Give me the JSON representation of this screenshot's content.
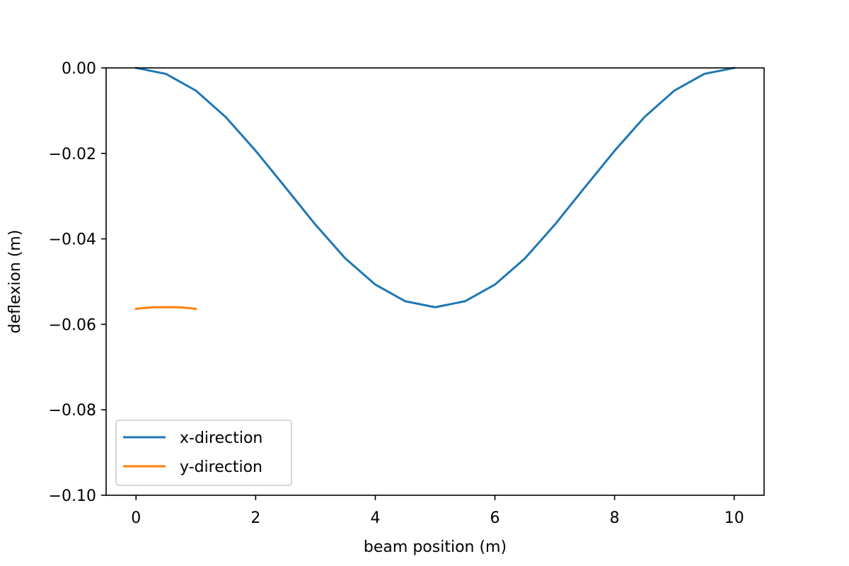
{
  "chart_data": {
    "type": "line",
    "title": "",
    "xlabel": "beam position (m)",
    "ylabel": "deflexion (m)",
    "xlim": [
      -0.5,
      10.5
    ],
    "ylim": [
      -0.1,
      0.0
    ],
    "xticks": [
      0,
      2,
      4,
      6,
      8,
      10
    ],
    "xtick_labels": [
      "0",
      "2",
      "4",
      "6",
      "8",
      "10"
    ],
    "yticks": [
      0.0,
      -0.02,
      -0.04,
      -0.06,
      -0.08,
      -0.1
    ],
    "ytick_labels": [
      "0.00",
      "−0.02",
      "−0.04",
      "−0.06",
      "−0.08",
      "−0.10"
    ],
    "grid": false,
    "legend": {
      "position": "lower-left"
    },
    "series": [
      {
        "name": "x-direction",
        "color": "#1f77b4",
        "x": [
          0,
          0.5,
          1,
          1.5,
          2,
          2.5,
          3,
          3.5,
          4,
          4.5,
          5,
          5.5,
          6,
          6.5,
          7,
          7.5,
          8,
          8.5,
          9,
          9.5,
          10
        ],
        "y": [
          0.0,
          -0.0014,
          -0.0053,
          -0.0115,
          -0.0194,
          -0.028,
          -0.0367,
          -0.0446,
          -0.0507,
          -0.0546,
          -0.056,
          -0.0546,
          -0.0507,
          -0.0446,
          -0.0367,
          -0.028,
          -0.0194,
          -0.0115,
          -0.0053,
          -0.0014,
          0.0
        ]
      },
      {
        "name": "y-direction",
        "color": "#ff7f0e",
        "x": [
          0,
          0.1,
          0.2,
          0.3,
          0.4,
          0.5,
          0.6,
          0.7,
          0.8,
          0.9,
          1.0
        ],
        "y": [
          -0.0564,
          -0.0562,
          -0.0561,
          -0.056,
          -0.056,
          -0.056,
          -0.056,
          -0.056,
          -0.0561,
          -0.0562,
          -0.0564
        ]
      }
    ]
  }
}
